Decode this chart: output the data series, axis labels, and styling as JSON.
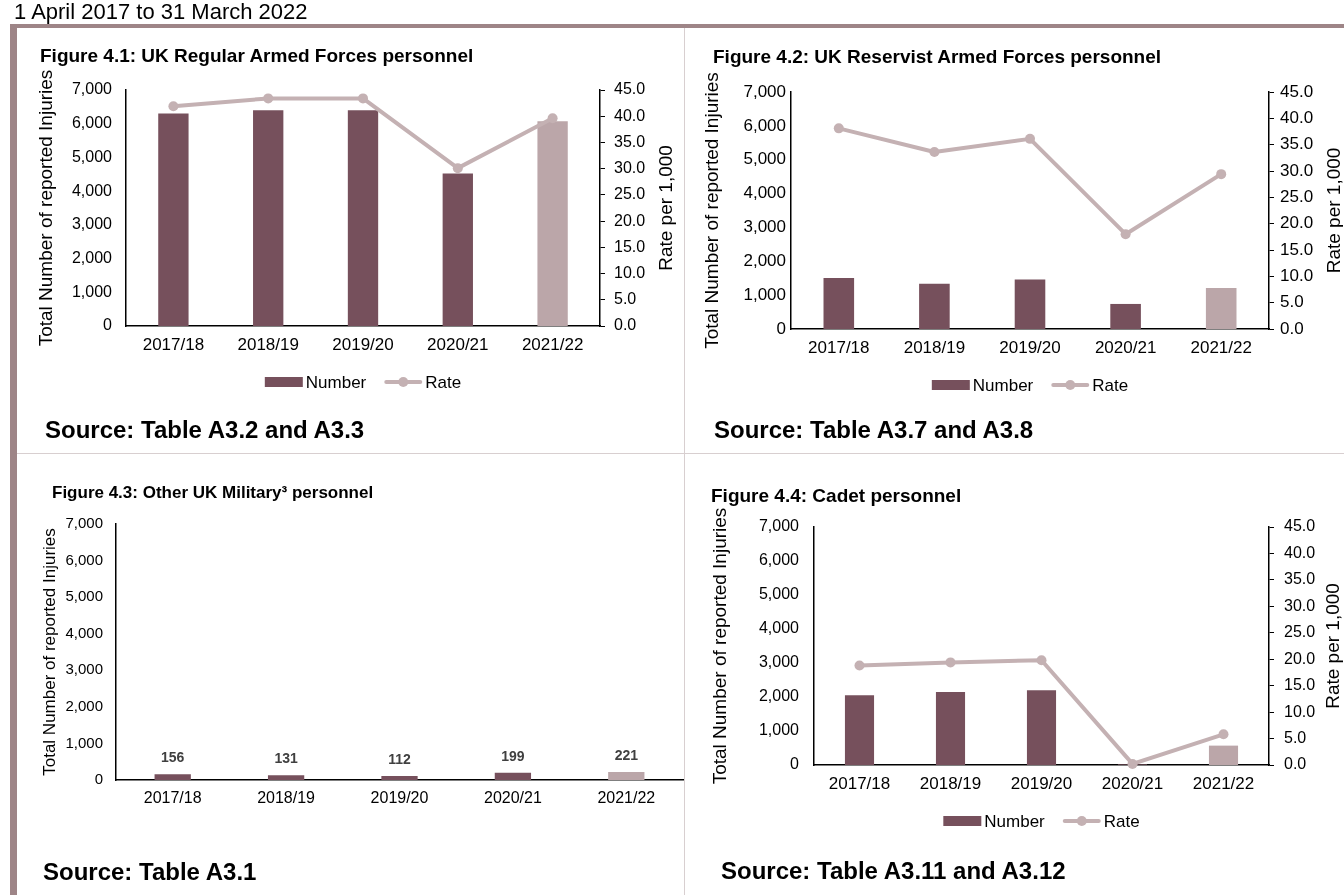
{
  "chart_data": [
    {
      "type": "other",
      "title": "1 April 2017 to 31 March 2022"
    },
    {
      "type": "bar",
      "title": "Figure 4.1: UK Regular Armed Forces personnel",
      "ylabel": "Total Number of reported Injuries",
      "y2label": "Rate per 1,000",
      "categories": [
        "2017/18",
        "2018/19",
        "2019/20",
        "2020/21",
        "2021/22"
      ],
      "series": [
        {
          "name": "Number",
          "type": "bar",
          "colors": [
            "#76505c",
            "#76505c",
            "#76505c",
            "#76505c",
            "#bba6a9"
          ],
          "values": [
            6300,
            6400,
            6400,
            4520,
            6070
          ]
        },
        {
          "name": "Rate",
          "type": "line",
          "axis": "y2",
          "color": "#c4b1b3",
          "values": [
            41.9,
            43.4,
            43.4,
            30.1,
            39.6
          ]
        }
      ],
      "ylim": [
        0,
        7000
      ],
      "yticks": [
        {
          "value": 0,
          "label": "0"
        },
        {
          "value": 1000,
          "label": "1,000"
        },
        {
          "value": 2000,
          "label": "2,000"
        },
        {
          "value": 3000,
          "label": "3,000"
        },
        {
          "value": 4000,
          "label": "4,000"
        },
        {
          "value": 5000,
          "label": "5,000"
        },
        {
          "value": 6000,
          "label": "6,000"
        },
        {
          "value": 7000,
          "label": "7,000"
        }
      ],
      "y2lim": [
        0,
        45
      ],
      "y2ticks": [
        {
          "value": 0,
          "label": "0.0"
        },
        {
          "value": 5,
          "label": "5.0"
        },
        {
          "value": 10,
          "label": "10.0"
        },
        {
          "value": 15,
          "label": "15.0"
        },
        {
          "value": 20,
          "label": "20.0"
        },
        {
          "value": 25,
          "label": "25.0"
        },
        {
          "value": 30,
          "label": "30.0"
        },
        {
          "value": 35,
          "label": "35.0"
        },
        {
          "value": 40,
          "label": "40.0"
        },
        {
          "value": 45,
          "label": "45.0"
        }
      ],
      "marker": "circle",
      "line_style": "solid",
      "grid": false,
      "legend": "bottom",
      "annotations": [
        "Source: Table A3.2 and A3.3"
      ]
    },
    {
      "type": "bar",
      "title": "Figure 4.2: UK Reservist Armed Forces personnel",
      "ylabel": "Total Number of reported Injuries",
      "y2label": "Rate per 1,000",
      "categories": [
        "2017/18",
        "2018/19",
        "2019/20",
        "2020/21",
        "2021/22"
      ],
      "series": [
        {
          "name": "Number",
          "type": "bar",
          "colors": [
            "#76505c",
            "#76505c",
            "#76505c",
            "#76505c",
            "#bba6a9"
          ],
          "values": [
            1510,
            1340,
            1460,
            740,
            1210
          ]
        },
        {
          "name": "Rate",
          "type": "line",
          "axis": "y2",
          "color": "#c4b1b3",
          "values": [
            38.1,
            33.6,
            36.1,
            18.0,
            29.4
          ]
        }
      ],
      "ylim": [
        0,
        7000
      ],
      "yticks": [
        {
          "value": 0,
          "label": "0"
        },
        {
          "value": 1000,
          "label": "1,000"
        },
        {
          "value": 2000,
          "label": "2,000"
        },
        {
          "value": 3000,
          "label": "3,000"
        },
        {
          "value": 4000,
          "label": "4,000"
        },
        {
          "value": 5000,
          "label": "5,000"
        },
        {
          "value": 6000,
          "label": "6,000"
        },
        {
          "value": 7000,
          "label": "7,000"
        }
      ],
      "y2lim": [
        0,
        45
      ],
      "y2ticks": [
        {
          "value": 0,
          "label": "0.0"
        },
        {
          "value": 5,
          "label": "5.0"
        },
        {
          "value": 10,
          "label": "10.0"
        },
        {
          "value": 15,
          "label": "15.0"
        },
        {
          "value": 20,
          "label": "20.0"
        },
        {
          "value": 25,
          "label": "25.0"
        },
        {
          "value": 30,
          "label": "30.0"
        },
        {
          "value": 35,
          "label": "35.0"
        },
        {
          "value": 40,
          "label": "40.0"
        },
        {
          "value": 45,
          "label": "45.0"
        }
      ],
      "marker": "circle",
      "line_style": "solid",
      "grid": false,
      "legend": "bottom",
      "annotations": [
        "Source: Table A3.7 and A3.8"
      ]
    },
    {
      "type": "bar",
      "title": "Figure 4.3: Other UK Military³ personnel",
      "ylabel": "Total Number of reported Injuries",
      "categories": [
        "2017/18",
        "2018/19",
        "2019/20",
        "2020/21",
        "2021/22"
      ],
      "values": [
        156,
        131,
        112,
        199,
        221
      ],
      "colors": [
        "#76505c",
        "#76505c",
        "#76505c",
        "#76505c",
        "#bba6a9"
      ],
      "ylim": [
        0,
        7000
      ],
      "yticks": [
        {
          "value": 0,
          "label": "0"
        },
        {
          "value": 1000,
          "label": "1,000"
        },
        {
          "value": 2000,
          "label": "2,000"
        },
        {
          "value": 3000,
          "label": "3,000"
        },
        {
          "value": 4000,
          "label": "4,000"
        },
        {
          "value": 5000,
          "label": "5,000"
        },
        {
          "value": 6000,
          "label": "6,000"
        },
        {
          "value": 7000,
          "label": "7,000"
        }
      ],
      "data_labels": true,
      "grid": false,
      "annotations": [
        "Source: Table A3.1"
      ]
    },
    {
      "type": "bar",
      "title": "Figure 4.4: Cadet personnel",
      "ylabel": "Total Number of reported Injuries",
      "y2label": "Rate per 1,000",
      "categories": [
        "2017/18",
        "2018/19",
        "2019/20",
        "2020/21",
        "2021/22"
      ],
      "series": [
        {
          "name": "Number",
          "type": "bar",
          "colors": [
            "#76505c",
            "#76505c",
            "#76505c",
            "#76505c",
            "#bba6a9"
          ],
          "values": [
            2050,
            2150,
            2200,
            20,
            570
          ]
        },
        {
          "name": "Rate",
          "type": "line",
          "axis": "y2",
          "color": "#c4b1b3",
          "values": [
            18.8,
            19.4,
            19.8,
            0.2,
            5.8
          ]
        }
      ],
      "ylim": [
        0,
        7000
      ],
      "yticks": [
        {
          "value": 0,
          "label": "0"
        },
        {
          "value": 1000,
          "label": "1,000"
        },
        {
          "value": 2000,
          "label": "2,000"
        },
        {
          "value": 3000,
          "label": "3,000"
        },
        {
          "value": 4000,
          "label": "4,000"
        },
        {
          "value": 5000,
          "label": "5,000"
        },
        {
          "value": 6000,
          "label": "6,000"
        },
        {
          "value": 7000,
          "label": "7,000"
        }
      ],
      "y2lim": [
        0,
        45
      ],
      "y2ticks": [
        {
          "value": 0,
          "label": "0.0"
        },
        {
          "value": 5,
          "label": "5.0"
        },
        {
          "value": 10,
          "label": "10.0"
        },
        {
          "value": 15,
          "label": "15.0"
        },
        {
          "value": 20,
          "label": "20.0"
        },
        {
          "value": 25,
          "label": "25.0"
        },
        {
          "value": 30,
          "label": "30.0"
        },
        {
          "value": 35,
          "label": "35.0"
        },
        {
          "value": 40,
          "label": "40.0"
        },
        {
          "value": 45,
          "label": "45.0"
        }
      ],
      "marker": "circle",
      "line_style": "solid",
      "grid": false,
      "legend": "bottom",
      "annotations": [
        "Source: Table A3.11 and A3.12"
      ]
    }
  ]
}
